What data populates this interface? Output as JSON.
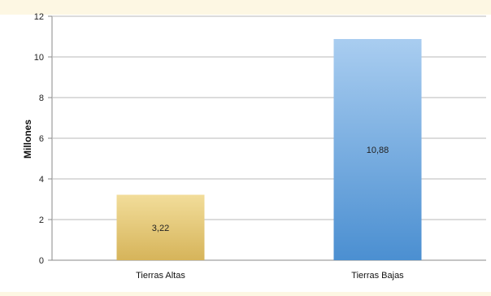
{
  "chart_data": {
    "type": "bar",
    "title": "",
    "xlabel": "",
    "ylabel": "Millones",
    "categories": [
      "Tierras Altas",
      "Tierras Bajas"
    ],
    "values": [
      3.22,
      10.88
    ],
    "value_labels": [
      "3,22",
      "10,88"
    ],
    "ylim": [
      0,
      12
    ],
    "yticks": [
      0,
      2,
      4,
      6,
      8,
      10,
      12
    ],
    "grid": true,
    "legend": "none",
    "colors": {
      "bar_fills": [
        [
          "#f2dd9a",
          "#d6b45a"
        ],
        [
          "#a9cdf0",
          "#4b8fd1"
        ]
      ],
      "background": "#fdf7e3",
      "plot_background": "#ffffff",
      "gridline": "#b8b8b8"
    }
  }
}
